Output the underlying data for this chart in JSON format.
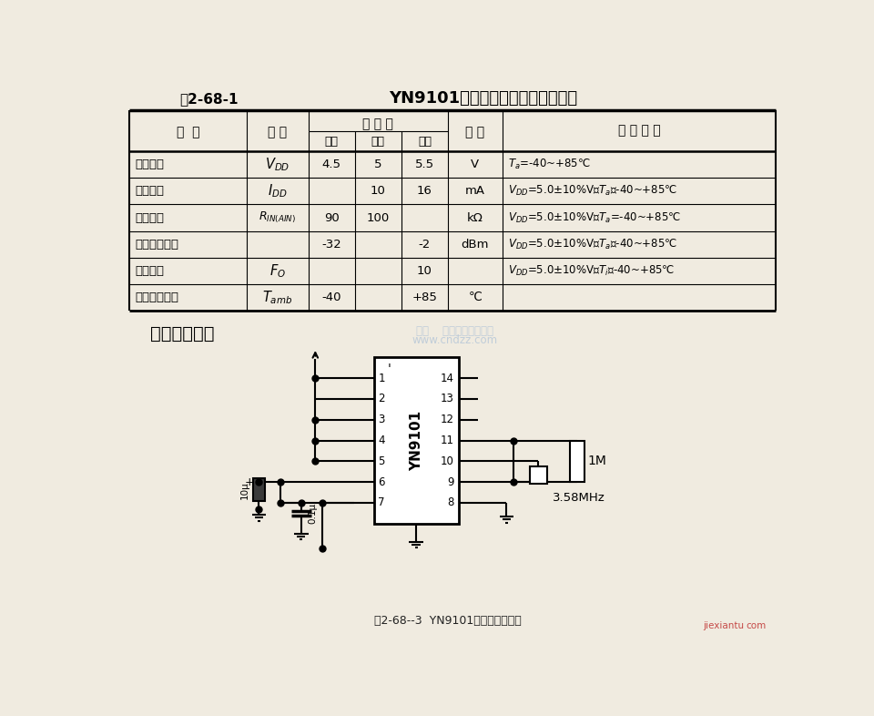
{
  "bg_color": "#f0ebe0",
  "title_label": "表2-68-1",
  "title_main": "YN9101电气技术指标符号及参数值",
  "col_names": [
    "名  称",
    "符 号",
    "参 数 值",
    "单 位",
    "测 试 条 件"
  ],
  "sub_cols": [
    "最小",
    "典型",
    "最大"
  ],
  "rows": [
    [
      "电源电压",
      "VDD",
      "4.5",
      "5",
      "5.5",
      "V",
      "T_a=-40~+85℃"
    ],
    [
      "电源电流",
      "IDD",
      "",
      "10",
      "16",
      "mA",
      "VDD=5.0±10%V；T_a＝-40~+85℃"
    ],
    [
      "输入阻抗",
      "RINAIN",
      "90",
      "100",
      "",
      "kΩ",
      "VDD=5.0±10%V；T_a=-40~+85℃"
    ],
    [
      "检测信号电平",
      "",
      "-32",
      "",
      "-2",
      "dBm",
      "VDD=5.0±10%V；T_a＝-40~+85℃"
    ],
    [
      "扇出能力",
      "FO",
      "",
      "",
      "10",
      "",
      "VDD=5.0±10%V；T_i＝-40~+85℃"
    ],
    [
      "工作环境温度",
      "Tamb",
      "-40",
      "",
      "+85",
      "℃",
      ""
    ]
  ],
  "circuit_title": "典型应用电路",
  "watermark1": "杭州    虚拟科技有限公司",
  "watermark2": "www.cndzz.com",
  "caption": "图2-68--3  YN9101典型应用电路图",
  "watermark_right": "jiexiantu",
  "watermark_right2": "com"
}
